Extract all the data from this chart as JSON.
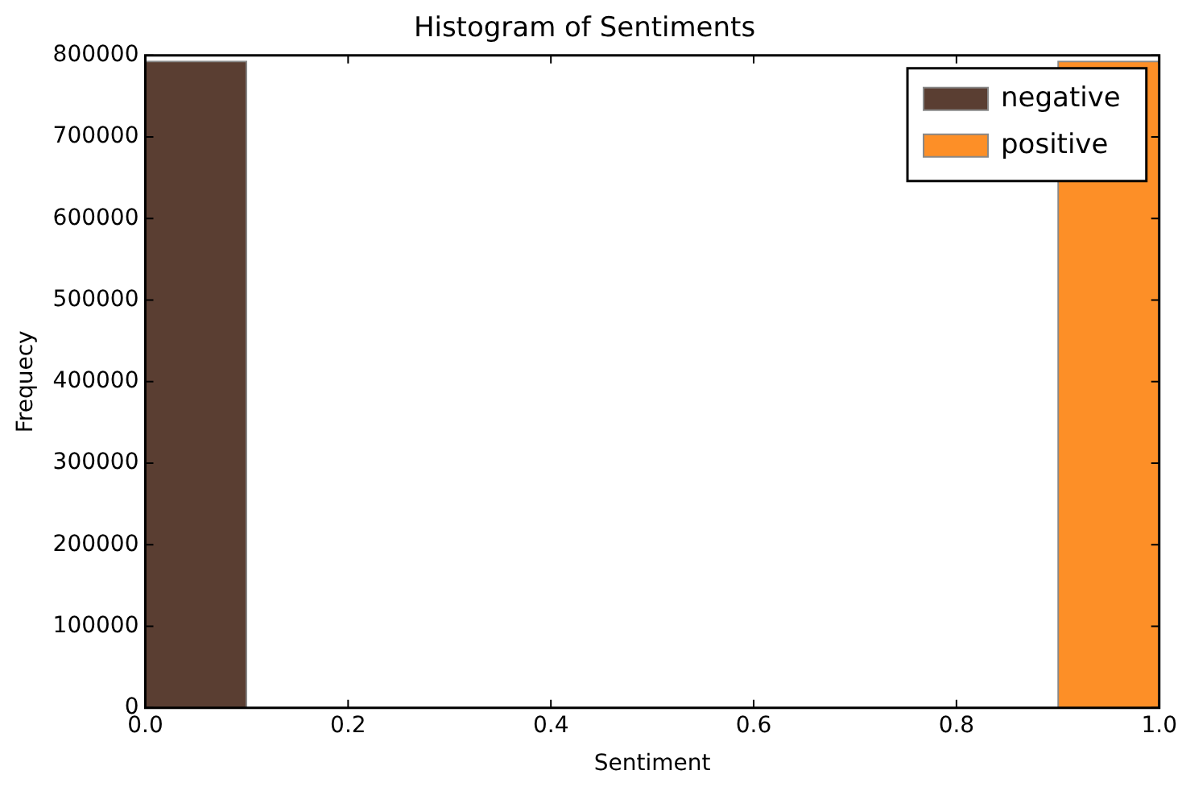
{
  "chart_data": {
    "type": "histogram",
    "title": "Histogram of Sentiments",
    "xlabel": "Sentiment",
    "ylabel": "Frequecy",
    "bins": [
      0,
      0.1,
      0.2,
      0.3,
      0.4,
      0.5,
      0.6,
      0.7,
      0.8,
      0.9,
      1.0
    ],
    "series": [
      {
        "name": "negative",
        "color": "#5a3e32",
        "values": [
          793000,
          0,
          0,
          0,
          0,
          0,
          0,
          0,
          0,
          0
        ]
      },
      {
        "name": "positive",
        "color": "#fd8f27",
        "values": [
          0,
          0,
          0,
          0,
          0,
          0,
          0,
          0,
          0,
          793000
        ]
      }
    ],
    "xlim": [
      0,
      1
    ],
    "xticks": [
      {
        "value": 0,
        "label": "0.0"
      },
      {
        "value": 0.2,
        "label": "0.2"
      },
      {
        "value": 0.4,
        "label": "0.4"
      },
      {
        "value": 0.6,
        "label": "0.6"
      },
      {
        "value": 0.8,
        "label": "0.8"
      },
      {
        "value": 1,
        "label": "1.0"
      }
    ],
    "ylim": [
      0,
      800000
    ],
    "yticks": [
      0,
      100000,
      200000,
      300000,
      400000,
      500000,
      600000,
      700000,
      800000
    ],
    "grid": false,
    "legend": "top right"
  }
}
